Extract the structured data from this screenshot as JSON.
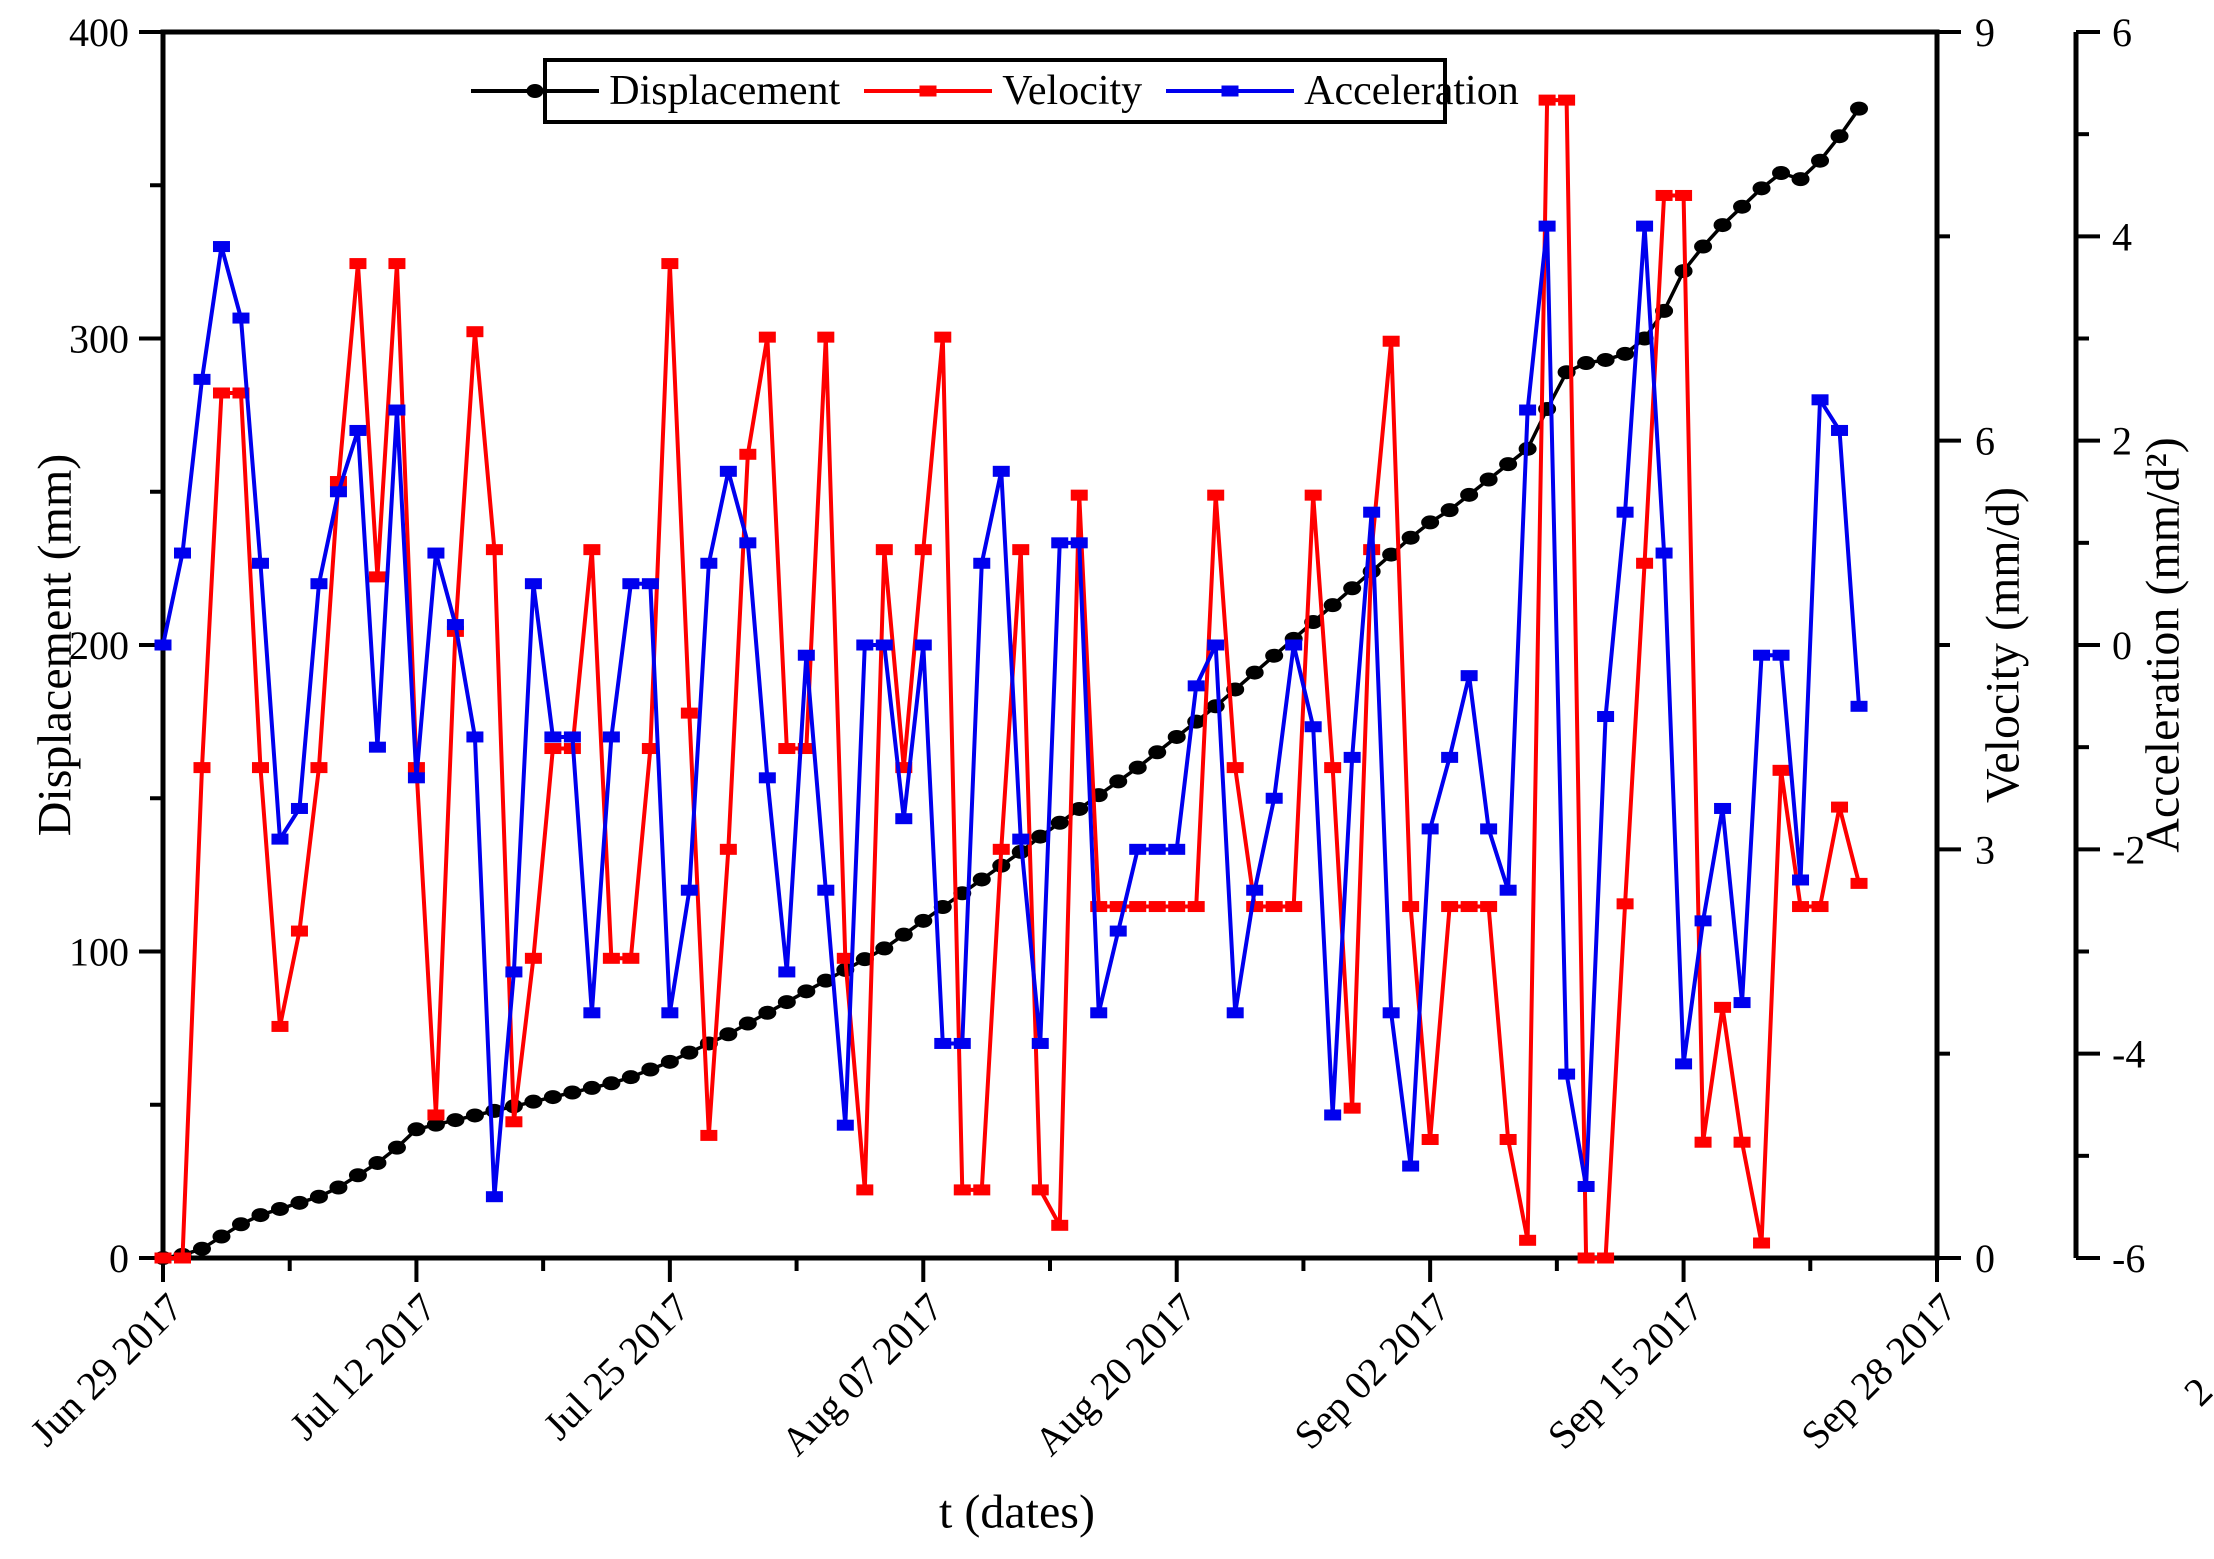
{
  "titles": {
    "x_axis": "t (dates)",
    "y_left": "Displacement (mm)",
    "y_right1": "Velocity (mm/d)",
    "y_right2": "Acceleration (mm/d²)"
  },
  "legend": {
    "displacement_label": "Displacement",
    "velocity_label": "Velocity",
    "acceleration_label": "Acceleration"
  },
  "stray_mark": "2",
  "colors": {
    "displacement": "#000000",
    "velocity": "#fe0000",
    "acceleration": "#0000ee",
    "frame": "#000000"
  },
  "chart_data": {
    "type": "line",
    "title": "",
    "xlabel": "t (dates)",
    "start_date": "Jun 29 2017",
    "interval_days": 1,
    "x_axis_span_days": 91,
    "x_tick_labels": [
      "Jun 29 2017",
      "Jul 12 2017",
      "Jul 25 2017",
      "Aug 07 2017",
      "Aug 20 2017",
      "Sep 02 2017",
      "Sep 15 2017",
      "Sep 28 2017"
    ],
    "x_major_step_days": 13,
    "x_minor_step_days": 6.5,
    "grid": false,
    "legend_position": "top-center",
    "series": [
      {
        "name": "Displacement",
        "axis": "left",
        "ylabel": "Displacement (mm)",
        "ylim": [
          0,
          400
        ],
        "yticks": [
          0,
          100,
          200,
          300,
          400
        ],
        "yminor_step": 50,
        "marker": "circle",
        "color": "#000000",
        "values": [
          0,
          1,
          3,
          7,
          11,
          14,
          16,
          18,
          20,
          23,
          27,
          31,
          36,
          42,
          43.5,
          45,
          46.5,
          48,
          49.5,
          51,
          52.5,
          54,
          55.5,
          57,
          59,
          61.5,
          64,
          67,
          70,
          73,
          76.5,
          80,
          83.5,
          87,
          90.5,
          94,
          97.5,
          101,
          105.5,
          110,
          114.5,
          119,
          123.5,
          128,
          132.5,
          137.5,
          142,
          146.5,
          151,
          155.5,
          160,
          165,
          170,
          175,
          180,
          185.5,
          191,
          196.5,
          202,
          207.5,
          213,
          218.5,
          224,
          229.5,
          235,
          240,
          244,
          249,
          254,
          259,
          264,
          277,
          289,
          292,
          293,
          295,
          300,
          309,
          322,
          330,
          337,
          343,
          349,
          354,
          352,
          358,
          366,
          375
        ]
      },
      {
        "name": "Velocity",
        "axis": "right1",
        "ylabel": "Velocity (mm/d)",
        "ylim": [
          0,
          9
        ],
        "yticks": [
          0,
          3,
          6,
          9
        ],
        "yminor_step": 1.5,
        "marker": "square",
        "color": "#fe0000",
        "values": [
          0,
          0,
          3.6,
          6.35,
          6.35,
          3.6,
          1.7,
          2.4,
          3.6,
          5.7,
          7.3,
          5.0,
          7.3,
          3.6,
          1.05,
          4.6,
          6.8,
          5.2,
          1.0,
          2.2,
          3.74,
          3.74,
          5.2,
          2.2,
          2.2,
          3.74,
          7.3,
          4.0,
          0.9,
          3.0,
          5.9,
          6.76,
          3.74,
          3.74,
          6.76,
          2.2,
          0.5,
          5.2,
          3.6,
          5.2,
          6.76,
          0.5,
          0.5,
          3.0,
          5.2,
          0.5,
          0.24,
          5.6,
          2.58,
          2.58,
          2.58,
          2.58,
          2.58,
          2.58,
          5.6,
          3.6,
          2.58,
          2.58,
          2.58,
          5.6,
          3.6,
          1.1,
          5.2,
          6.73,
          2.58,
          0.87,
          2.58,
          2.58,
          2.58,
          0.87,
          0.13,
          8.5,
          8.5,
          0,
          0,
          2.6,
          5.1,
          7.8,
          7.8,
          0.85,
          1.84,
          0.85,
          0.11,
          3.58,
          2.58,
          2.58,
          3.31,
          2.75
        ]
      },
      {
        "name": "Acceleration",
        "axis": "right2",
        "ylabel": "Acceleration (mm/d²)",
        "ylim": [
          -6,
          6
        ],
        "yticks": [
          -6,
          -4,
          -2,
          0,
          2,
          4,
          6
        ],
        "yminor_step": 1,
        "marker": "square",
        "color": "#0000ee",
        "values": [
          0,
          0.9,
          2.6,
          3.9,
          3.2,
          0.8,
          -1.9,
          -1.6,
          0.6,
          1.5,
          2.1,
          -1.0,
          2.3,
          -1.3,
          0.9,
          0.2,
          -0.9,
          -5.4,
          -3.2,
          0.6,
          -0.9,
          -0.9,
          -3.6,
          -0.9,
          0.6,
          0.6,
          -3.6,
          -2.4,
          0.8,
          1.7,
          1.0,
          -1.3,
          -3.2,
          -0.1,
          -2.4,
          -4.7,
          0.0,
          0.0,
          -1.7,
          0.0,
          -3.9,
          -3.9,
          0.8,
          1.7,
          -1.9,
          -3.9,
          1.0,
          1.0,
          -3.6,
          -2.8,
          -2.0,
          -2.0,
          -2.0,
          -0.4,
          0.0,
          -3.6,
          -2.4,
          -1.5,
          0.0,
          -0.8,
          -4.6,
          -1.1,
          1.3,
          -3.6,
          -5.1,
          -1.8,
          -1.1,
          -0.3,
          -1.8,
          -2.4,
          2.3,
          4.1,
          -4.2,
          -5.3,
          -0.7,
          1.3,
          4.1,
          0.9,
          -4.1,
          -2.7,
          -1.6,
          -3.5,
          -0.1,
          -0.1,
          -2.3,
          2.4,
          2.1,
          -0.6
        ]
      }
    ]
  }
}
